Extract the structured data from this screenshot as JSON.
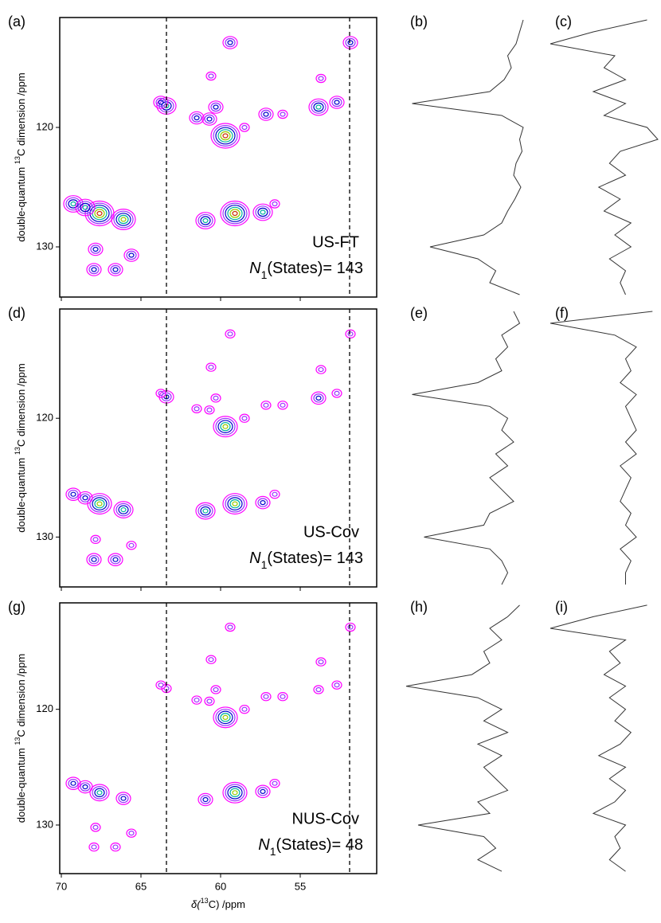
{
  "chart_data": [
    {
      "type": "contour",
      "title": "(a)",
      "label": "US-FT",
      "note": [
        "N",
        "1",
        "(States)= 143"
      ],
      "ylabel": [
        "double-quantum ",
        "13",
        "C dimension /ppm"
      ],
      "xlim": [
        70.1,
        50.2
      ],
      "ylim": [
        110.8,
        134.2
      ],
      "xticks": [
        70,
        65,
        60,
        55
      ],
      "yticks": [
        120,
        130
      ],
      "xtick_labels": false,
      "vlines": [
        63.4,
        51.9
      ],
      "colors": [
        "#ff00ff",
        "#9933ff",
        "#0000cc",
        "#00b0a0",
        "#99cc00",
        "#cc3300"
      ],
      "x": [
        59.4,
        51.85,
        60.6,
        53.7,
        63.4,
        63.75,
        61.5,
        60.7,
        59.7,
        57.15,
        56.1,
        53.85,
        52.7,
        58.5,
        69.25,
        67.6,
        66.1,
        68.5,
        60.95,
        59.1,
        57.35,
        56.6,
        67.85,
        67.95,
        66.6,
        65.6,
        60.3
      ],
      "y": [
        112.9,
        112.9,
        115.7,
        115.9,
        118.2,
        117.9,
        119.2,
        119.3,
        120.7,
        118.9,
        118.9,
        118.3,
        117.9,
        120.0,
        126.4,
        127.2,
        127.7,
        126.7,
        127.8,
        127.2,
        127.1,
        126.4,
        130.2,
        131.9,
        131.9,
        130.7,
        118.3
      ],
      "levels": [
        2,
        2,
        1,
        1,
        3,
        2,
        2,
        2,
        5,
        2,
        1,
        3,
        2,
        1,
        3,
        5,
        4,
        3,
        3,
        5,
        3,
        1,
        2,
        2,
        2,
        2,
        2
      ]
    },
    {
      "type": "trace",
      "title": "(b)",
      "color": "#333333",
      "ylim": [
        110.8,
        134.2
      ],
      "y": [
        111,
        112,
        113,
        114,
        115,
        116,
        117,
        118,
        119,
        120,
        121,
        122,
        123,
        124,
        125,
        126,
        127,
        128,
        129,
        130,
        131,
        132,
        133,
        134
      ],
      "values": [
        0.02,
        0.05,
        0.08,
        0.15,
        0.12,
        0.18,
        0.3,
        0.95,
        0.2,
        0.02,
        0.05,
        0.03,
        0.08,
        0.1,
        0.04,
        0.09,
        0.15,
        0.2,
        0.35,
        0.8,
        0.4,
        0.25,
        0.3,
        0.05
      ]
    },
    {
      "type": "trace",
      "title": "(c)",
      "color": "#333333",
      "ylim": [
        110.8,
        134.2
      ],
      "y": [
        111,
        112,
        113,
        114,
        115,
        116,
        117,
        118,
        119,
        120,
        121,
        122,
        123,
        124,
        125,
        126,
        127,
        128,
        129,
        130,
        131,
        132,
        133,
        134
      ],
      "values": [
        0.1,
        0.6,
        1.0,
        0.4,
        0.5,
        0.3,
        0.6,
        0.3,
        0.5,
        0.1,
        0.0,
        0.35,
        0.45,
        0.3,
        0.55,
        0.35,
        0.5,
        0.25,
        0.4,
        0.25,
        0.45,
        0.3,
        0.35,
        0.3
      ]
    },
    {
      "type": "contour",
      "title": "(d)",
      "label": "US-Cov",
      "note": [
        "N",
        "1",
        "(States)= 143"
      ],
      "ylabel": [
        "double-quantum ",
        "13",
        "C dimension /ppm"
      ],
      "xlim": [
        70.1,
        50.2
      ],
      "ylim": [
        110.8,
        134.2
      ],
      "xticks": [
        70,
        65,
        60,
        55
      ],
      "yticks": [
        120,
        130
      ],
      "xtick_labels": false,
      "vlines": [
        63.4,
        51.9
      ],
      "colors": [
        "#ff00ff",
        "#9933ff",
        "#0000cc",
        "#00b0a0",
        "#99cc00",
        "#cc3300"
      ],
      "x": [
        59.4,
        51.85,
        60.6,
        53.7,
        63.4,
        63.75,
        61.5,
        60.7,
        59.7,
        57.15,
        56.1,
        53.85,
        52.7,
        58.5,
        69.25,
        67.6,
        66.1,
        68.5,
        60.95,
        59.1,
        57.35,
        56.6,
        67.85,
        67.95,
        66.6,
        65.6,
        60.3
      ],
      "y": [
        112.9,
        112.9,
        115.7,
        115.9,
        118.2,
        117.9,
        119.2,
        119.3,
        120.7,
        118.9,
        118.9,
        118.3,
        117.9,
        120.0,
        126.4,
        127.2,
        127.7,
        126.7,
        127.8,
        127.2,
        127.1,
        126.4,
        130.2,
        131.9,
        131.9,
        130.7,
        118.3
      ],
      "levels": [
        1,
        1,
        1,
        1,
        2,
        1,
        1,
        1,
        4,
        1,
        1,
        2,
        1,
        1,
        2,
        4,
        3,
        2,
        3,
        4,
        2,
        1,
        1,
        2,
        2,
        1,
        1
      ]
    },
    {
      "type": "trace",
      "title": "(e)",
      "color": "#333333",
      "ylim": [
        110.8,
        134.2
      ],
      "y": [
        111,
        112,
        113,
        114,
        115,
        116,
        117,
        118,
        119,
        120,
        121,
        122,
        123,
        124,
        125,
        126,
        127,
        128,
        129,
        130,
        131,
        132,
        133,
        134
      ],
      "values": [
        0.1,
        0.05,
        0.2,
        0.15,
        0.25,
        0.2,
        0.4,
        0.95,
        0.3,
        0.15,
        0.2,
        0.1,
        0.25,
        0.15,
        0.3,
        0.2,
        0.1,
        0.3,
        0.35,
        0.85,
        0.3,
        0.2,
        0.15,
        0.2
      ]
    },
    {
      "type": "trace",
      "title": "(f)",
      "color": "#333333",
      "ylim": [
        110.8,
        134.2
      ],
      "y": [
        111,
        112,
        113,
        114,
        115,
        116,
        117,
        118,
        119,
        120,
        121,
        122,
        123,
        124,
        125,
        126,
        127,
        128,
        129,
        130,
        131,
        132,
        133,
        134
      ],
      "values": [
        0.05,
        1.0,
        0.4,
        0.2,
        0.3,
        0.25,
        0.35,
        0.2,
        0.3,
        0.25,
        0.2,
        0.3,
        0.2,
        0.35,
        0.25,
        0.3,
        0.35,
        0.25,
        0.3,
        0.2,
        0.35,
        0.25,
        0.3,
        0.3
      ]
    },
    {
      "type": "contour",
      "title": "(g)",
      "label": "NUS-Cov",
      "note": [
        "N",
        "1",
        "(States)= 48"
      ],
      "ylabel": [
        "double-quantum ",
        "13",
        "C dimension /ppm"
      ],
      "xlabel": [
        "δ(",
        "13",
        "C) /ppm"
      ],
      "xlim": [
        70.1,
        50.2
      ],
      "ylim": [
        110.8,
        134.2
      ],
      "xticks": [
        70,
        65,
        60,
        55
      ],
      "yticks": [
        120,
        130
      ],
      "xtick_labels": true,
      "vlines": [
        63.4,
        51.9
      ],
      "colors": [
        "#ff00ff",
        "#9933ff",
        "#0000cc",
        "#00b0a0",
        "#99cc00",
        "#cc3300"
      ],
      "x": [
        59.4,
        51.85,
        60.6,
        53.7,
        63.4,
        63.75,
        61.5,
        60.7,
        59.7,
        57.15,
        56.1,
        53.85,
        52.7,
        58.5,
        69.25,
        67.6,
        66.1,
        68.5,
        60.95,
        59.1,
        57.35,
        56.6,
        67.85,
        67.95,
        66.6,
        65.6,
        60.3
      ],
      "y": [
        112.9,
        112.9,
        115.7,
        115.9,
        118.2,
        117.9,
        119.2,
        119.3,
        120.7,
        118.9,
        118.9,
        118.3,
        117.9,
        120.0,
        126.4,
        127.2,
        127.7,
        126.7,
        127.8,
        127.2,
        127.1,
        126.4,
        130.2,
        131.9,
        131.9,
        130.7,
        118.3
      ],
      "levels": [
        1,
        1,
        1,
        1,
        1,
        1,
        1,
        1,
        4,
        1,
        1,
        1,
        1,
        1,
        2,
        3,
        2,
        2,
        2,
        4,
        2,
        1,
        1,
        1,
        1,
        1,
        1
      ]
    },
    {
      "type": "trace",
      "title": "(h)",
      "color": "#333333",
      "ylim": [
        110.8,
        134.2
      ],
      "y": [
        111,
        112,
        113,
        114,
        115,
        116,
        117,
        118,
        119,
        120,
        121,
        122,
        123,
        124,
        125,
        126,
        127,
        128,
        129,
        130,
        131,
        132,
        133,
        134
      ],
      "values": [
        0.05,
        0.15,
        0.3,
        0.2,
        0.35,
        0.3,
        0.45,
        1.0,
        0.4,
        0.2,
        0.35,
        0.15,
        0.4,
        0.2,
        0.35,
        0.25,
        0.15,
        0.4,
        0.3,
        0.9,
        0.35,
        0.25,
        0.4,
        0.2
      ]
    },
    {
      "type": "trace",
      "title": "(i)",
      "color": "#333333",
      "ylim": [
        110.8,
        134.2
      ],
      "y": [
        111,
        112,
        113,
        114,
        115,
        116,
        117,
        118,
        119,
        120,
        121,
        122,
        123,
        124,
        125,
        126,
        127,
        128,
        129,
        130,
        131,
        132,
        133,
        134
      ],
      "values": [
        0.1,
        0.6,
        1.0,
        0.3,
        0.45,
        0.35,
        0.5,
        0.3,
        0.45,
        0.3,
        0.4,
        0.25,
        0.35,
        0.55,
        0.3,
        0.45,
        0.3,
        0.4,
        0.6,
        0.3,
        0.4,
        0.35,
        0.45,
        0.3
      ]
    }
  ]
}
